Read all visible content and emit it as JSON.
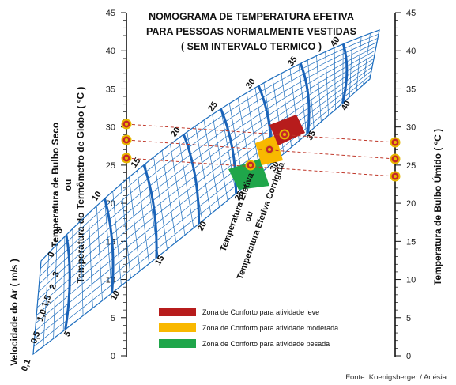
{
  "title": {
    "line1": "NOMOGRAMA DE TEMPERATURA EFETIVA",
    "line2": "PARA PESSOAS NORMALMENTE VESTIDAS",
    "line3": "( SEM INTERVALO TERMICO )"
  },
  "left_axis": {
    "label_lines": [
      "Temperatura de Bulbo Seco",
      "ou",
      "Temperatura do Termômetro de Globo ( ºC )"
    ],
    "ticks": [
      "45",
      "40",
      "35",
      "30",
      "25",
      "20",
      "15",
      "10",
      "5",
      "0"
    ]
  },
  "right_axis": {
    "label": "Temperatura de Bulbo Úmido ( ºC )",
    "ticks": [
      "45",
      "40",
      "35",
      "30",
      "25",
      "20",
      "15",
      "10",
      "5",
      "0"
    ]
  },
  "wind_axis": {
    "label": "Velocidade do Ar ( m/s )",
    "ticks": [
      "0,1",
      "0,5",
      "1,0",
      "1,5",
      "2",
      "3",
      "0"
    ]
  },
  "effective_temp": {
    "label_lines": [
      "Temperatura Efetiva",
      "ou",
      "Temperatura Efetiva Corrigida"
    ],
    "curves_upper": [
      "5",
      "10",
      "15",
      "20",
      "25",
      "30",
      "35",
      "40"
    ],
    "curves_lower": [
      "5",
      "10",
      "15",
      "20",
      "25",
      "30",
      "35",
      "40"
    ]
  },
  "legend": [
    {
      "label": "Zona de Conforto  para atividade leve",
      "color": "#b71c1c"
    },
    {
      "label": "Zona de Conforto  para atividade moderada",
      "color": "#f9b800"
    },
    {
      "label": "Zona de Conforto  para atividade pesada",
      "color": "#1fa64a"
    }
  ],
  "source": "Fonte: Koenigsberger / Anésia",
  "colors": {
    "grid": "#1f6fbf",
    "guide": "#c0392b",
    "marker_ring": "#e8b800"
  }
}
